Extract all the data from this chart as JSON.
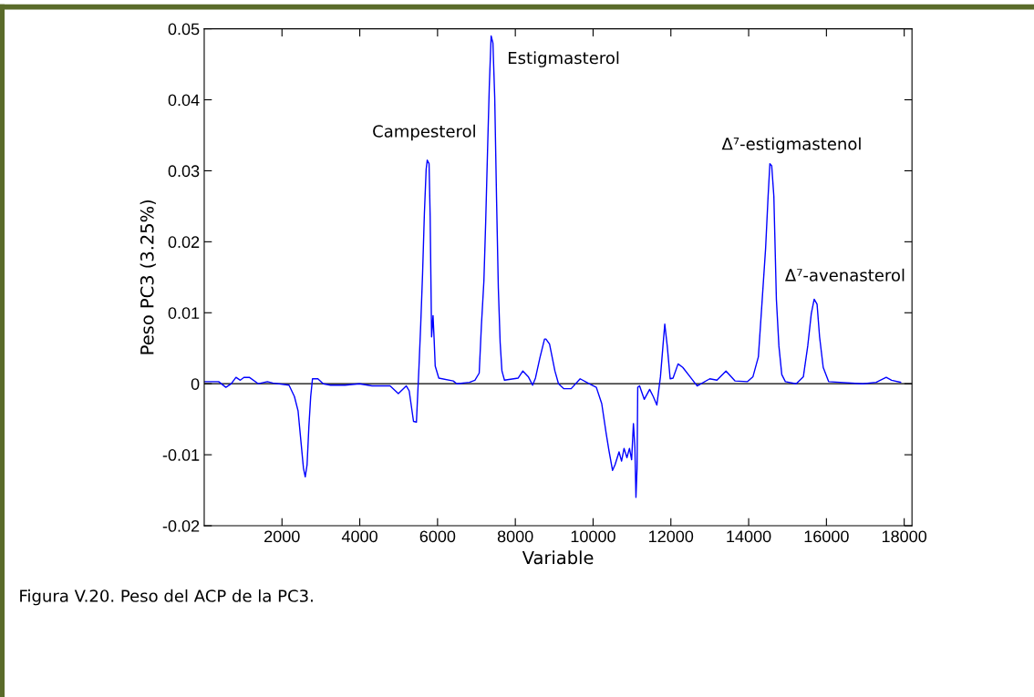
{
  "chart_data": {
    "type": "line",
    "xlabel": "Variable",
    "ylabel": "Peso PC3 (3.25%)",
    "xlim": [
      0,
      18200
    ],
    "ylim": [
      -0.02,
      0.05
    ],
    "xticks": [
      2000,
      4000,
      6000,
      8000,
      10000,
      12000,
      14000,
      16000,
      18000
    ],
    "yticks": [
      -0.02,
      -0.01,
      0,
      0.01,
      0.02,
      0.03,
      0.04,
      0.05
    ],
    "grid": false,
    "legend": false,
    "marker": "none",
    "line_style": "solid",
    "ref_lines": [
      {
        "axis": "y",
        "value": 0,
        "color": "#000000",
        "line_style": "solid"
      }
    ],
    "series": [
      {
        "color": "#0000ff",
        "x": [
          0,
          371,
          557,
          696,
          817,
          928,
          1021,
          1160,
          1392,
          1624,
          1763,
          2181,
          2320,
          2413,
          2487,
          2552,
          2598,
          2645,
          2691,
          2738,
          2784,
          2923,
          3062,
          3248,
          3619,
          3990,
          4315,
          4779,
          4992,
          5197,
          5271,
          5382,
          5457,
          5522,
          5568,
          5615,
          5661,
          5707,
          5735,
          5782,
          5810,
          5847,
          5884,
          5912,
          5940,
          6032,
          6403,
          6496,
          6821,
          6960,
          7071,
          7127,
          7192,
          7238,
          7285,
          7331,
          7378,
          7424,
          7470,
          7517,
          7563,
          7610,
          7656,
          7721,
          8074,
          8194,
          8333,
          8444,
          8518,
          8630,
          8751,
          8787,
          8880,
          9018,
          9111,
          9250,
          9435,
          9667,
          9898,
          10083,
          10222,
          10333,
          10407,
          10500,
          10565,
          10667,
          10732,
          10796,
          10870,
          10935,
          10991,
          11037,
          11074,
          11102,
          11130,
          11148,
          11195,
          11315,
          11454,
          11547,
          11639,
          11732,
          11796,
          11843,
          11907,
          11982,
          12056,
          12185,
          12306,
          12491,
          12676,
          13000,
          13185,
          13417,
          13648,
          13972,
          14111,
          14250,
          14343,
          14435,
          14500,
          14546,
          14593,
          14648,
          14713,
          14778,
          14852,
          14944,
          15222,
          15407,
          15519,
          15611,
          15685,
          15759,
          15824,
          15917,
          16056,
          16936,
          17278,
          17537,
          17676,
          17907
        ],
        "values": [
          0.0003,
          0.0003,
          -0.0005,
          0,
          0.0009,
          0.0005,
          0.0009,
          0.0009,
          0,
          0.0003,
          0.0001,
          -0.0002,
          -0.0018,
          -0.0038,
          -0.0081,
          -0.0119,
          -0.0131,
          -0.0114,
          -0.0061,
          -0.0018,
          0.0007,
          0.0007,
          0,
          -0.0002,
          -0.0002,
          0,
          -0.0003,
          -0.0003,
          -0.0014,
          -0.0003,
          -0.001,
          -0.0053,
          -0.0054,
          0.0023,
          0.0084,
          0.0155,
          0.0239,
          0.0302,
          0.0315,
          0.031,
          0.0236,
          0.0066,
          0.0096,
          0.0063,
          0.0025,
          0.0008,
          0.0004,
          0,
          0.0002,
          0.0005,
          0.0015,
          0.0081,
          0.0145,
          0.0228,
          0.0327,
          0.0419,
          0.049,
          0.048,
          0.0404,
          0.0261,
          0.0135,
          0.0058,
          0.0018,
          0.0005,
          0.0008,
          0.0018,
          0.001,
          -0.0002,
          0.0008,
          0.0036,
          0.0063,
          0.0063,
          0.0056,
          0.0018,
          0,
          -0.0007,
          -0.0007,
          0.0007,
          0,
          -0.0005,
          -0.0028,
          -0.0069,
          -0.0094,
          -0.0122,
          -0.0114,
          -0.0096,
          -0.0109,
          -0.0091,
          -0.0104,
          -0.0091,
          -0.0107,
          -0.0056,
          -0.0089,
          -0.016,
          -0.0119,
          -0.0005,
          -0.0003,
          -0.0022,
          -0.0008,
          -0.0018,
          -0.003,
          0.001,
          0.0053,
          0.0084,
          0.0053,
          0.0007,
          0.0008,
          0.0028,
          0.0023,
          0.001,
          -0.0003,
          0.0007,
          0.0005,
          0.0018,
          0.0004,
          0.0003,
          0.001,
          0.0038,
          0.0114,
          0.019,
          0.0264,
          0.031,
          0.0307,
          0.0264,
          0.0119,
          0.0053,
          0.0013,
          0.0003,
          0,
          0.001,
          0.0053,
          0.0099,
          0.0119,
          0.0112,
          0.0066,
          0.0023,
          0.0003,
          0,
          0.0002,
          0.0009,
          0.0005,
          0.0002
        ]
      }
    ],
    "annotations": [
      "Campesterol",
      "Estigmasterol",
      "Δ⁷-estigmastenol",
      "Δ⁷-avenasterol",
      "Figura V.20. Peso del ACP de la PC3."
    ]
  }
}
